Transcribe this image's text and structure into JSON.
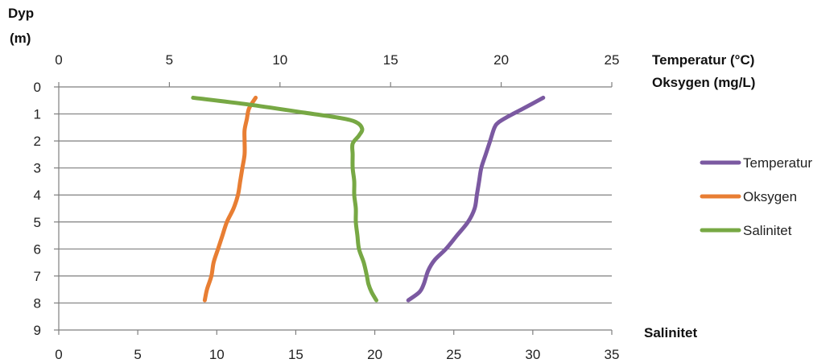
{
  "chart_data": {
    "type": "line",
    "y_axis": {
      "title_line1": "Dyp",
      "title_line2": "(m)",
      "ticks": [
        "0",
        "1",
        "2",
        "3",
        "4",
        "5",
        "6",
        "7",
        "8",
        "9"
      ],
      "range": [
        0,
        9
      ],
      "reversed": true
    },
    "top_axis": {
      "title_line1": "Temperatur (°C)",
      "title_line2": "Oksygen (mg/L)",
      "ticks": [
        "0",
        "5",
        "10",
        "15",
        "20",
        "25"
      ],
      "range": [
        0,
        25
      ]
    },
    "bottom_axis": {
      "title": "Salinitet",
      "ticks": [
        "0",
        "5",
        "10",
        "15",
        "20",
        "25",
        "30",
        "35"
      ],
      "range": [
        0,
        35
      ]
    },
    "grid": "horizontal",
    "legend_position": "right",
    "series": [
      {
        "name": "Temperatur",
        "axis": "top",
        "color": "#7b59a1",
        "points": [
          [
            21.9,
            0.4
          ],
          [
            21.0,
            0.8
          ],
          [
            20.3,
            1.1
          ],
          [
            19.9,
            1.3
          ],
          [
            19.7,
            1.5
          ],
          [
            19.5,
            2.0
          ],
          [
            19.3,
            2.5
          ],
          [
            19.1,
            3.0
          ],
          [
            19.0,
            3.5
          ],
          [
            18.9,
            4.0
          ],
          [
            18.8,
            4.5
          ],
          [
            18.5,
            5.0
          ],
          [
            18.0,
            5.5
          ],
          [
            17.5,
            6.0
          ],
          [
            17.0,
            6.4
          ],
          [
            16.7,
            6.8
          ],
          [
            16.5,
            7.3
          ],
          [
            16.3,
            7.6
          ],
          [
            15.8,
            7.9
          ]
        ]
      },
      {
        "name": "Oksygen",
        "axis": "top",
        "color": "#e87e33",
        "points": [
          [
            8.9,
            0.4
          ],
          [
            8.6,
            0.8
          ],
          [
            8.5,
            1.2
          ],
          [
            8.4,
            1.6
          ],
          [
            8.4,
            2.0
          ],
          [
            8.4,
            2.5
          ],
          [
            8.3,
            3.0
          ],
          [
            8.2,
            3.5
          ],
          [
            8.1,
            4.0
          ],
          [
            7.9,
            4.5
          ],
          [
            7.6,
            5.0
          ],
          [
            7.4,
            5.5
          ],
          [
            7.2,
            6.0
          ],
          [
            7.0,
            6.5
          ],
          [
            6.9,
            7.0
          ],
          [
            6.7,
            7.5
          ],
          [
            6.6,
            7.9
          ]
        ]
      },
      {
        "name": "Salinitet",
        "axis": "bottom",
        "color": "#77a844",
        "points": [
          [
            8.5,
            0.4
          ],
          [
            12.0,
            0.65
          ],
          [
            15.5,
            0.95
          ],
          [
            17.8,
            1.15
          ],
          [
            18.8,
            1.3
          ],
          [
            19.2,
            1.55
          ],
          [
            19.0,
            1.8
          ],
          [
            18.6,
            2.1
          ],
          [
            18.6,
            2.5
          ],
          [
            18.6,
            3.0
          ],
          [
            18.7,
            3.5
          ],
          [
            18.7,
            4.0
          ],
          [
            18.8,
            4.5
          ],
          [
            18.8,
            5.0
          ],
          [
            18.9,
            5.5
          ],
          [
            19.0,
            6.0
          ],
          [
            19.3,
            6.5
          ],
          [
            19.5,
            7.0
          ],
          [
            19.6,
            7.3
          ],
          [
            19.8,
            7.6
          ],
          [
            20.1,
            7.9
          ]
        ]
      }
    ]
  }
}
